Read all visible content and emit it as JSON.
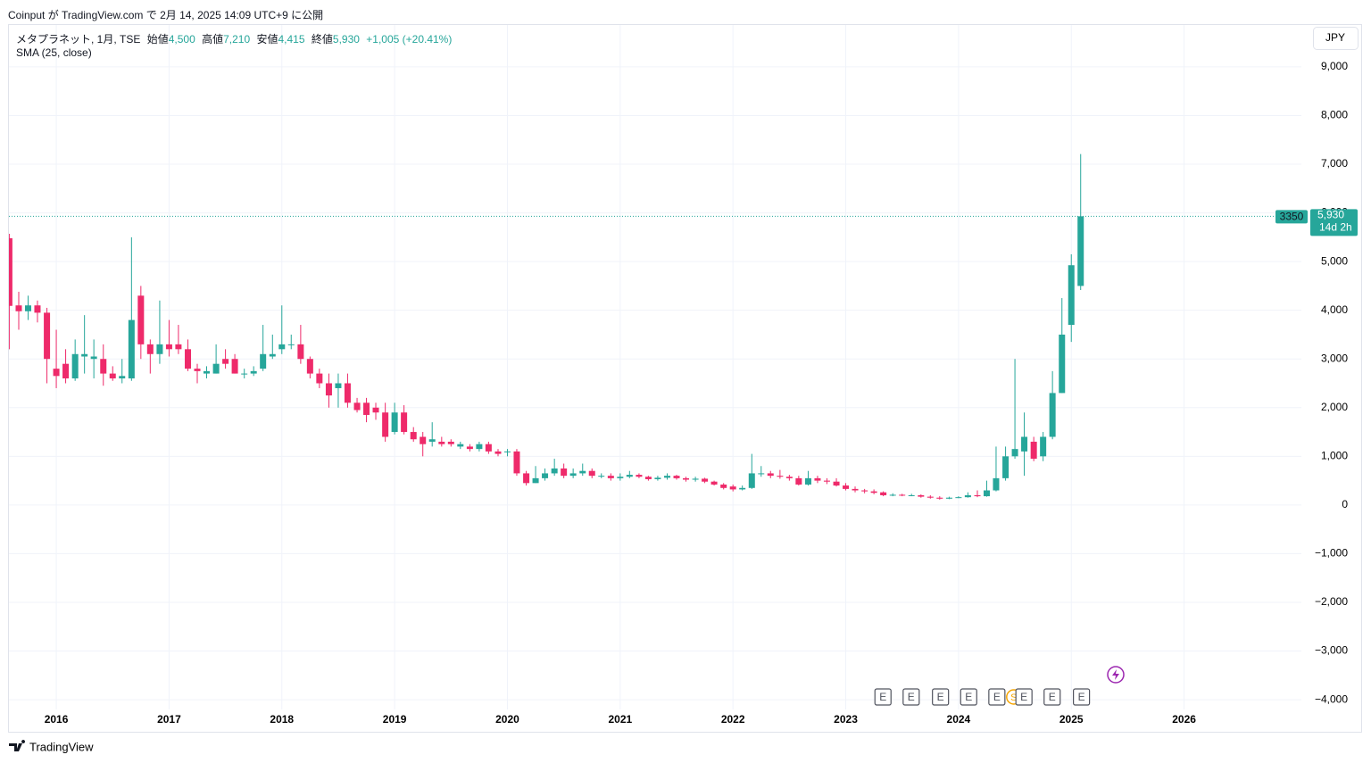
{
  "header": "Coinput が TradingView.com で 2月 14, 2025 14:09 UTC+9 に公開",
  "chart_data": {
    "type": "candlestick",
    "legend": {
      "symbol": "メタプラネット, 1月, TSE",
      "open_label": "始値",
      "open": "4,500",
      "high_label": "高値",
      "high": "7,210",
      "low_label": "安値",
      "low": "4,415",
      "close_label": "終値",
      "close": "5,930",
      "change": "+1,005 (+20.41%)",
      "indicator": "SMA (25, close)"
    },
    "currency": "JPY",
    "up_color": "#26a69a",
    "down_color": "#ee2a6a",
    "xlim": [
      2015.58,
      2027.04
    ],
    "xticks": [
      2016,
      2017,
      2018,
      2019,
      2020,
      2021,
      2022,
      2023,
      2024,
      2025,
      2026
    ],
    "ylim": [
      -4200,
      9860
    ],
    "yticks": [
      {
        "value": -4000,
        "label": "−4,000"
      },
      {
        "value": -3000,
        "label": "−3,000"
      },
      {
        "value": -2000,
        "label": "−2,000"
      },
      {
        "value": -1000,
        "label": "−1,000"
      },
      0,
      {
        "value": 1000,
        "label": "1,000"
      },
      {
        "value": 2000,
        "label": "2,000"
      },
      {
        "value": 3000,
        "label": "3,000"
      },
      {
        "value": 4000,
        "label": "4,000"
      },
      {
        "value": 5000,
        "label": "5,000"
      },
      {
        "value": 6000,
        "label": "6,000"
      },
      {
        "value": 7000,
        "label": "7,000"
      },
      {
        "value": 8000,
        "label": "8,000"
      },
      {
        "value": 9000,
        "label": "9,000"
      }
    ],
    "grid": true,
    "x": [
      2015.583,
      2015.667,
      2015.75,
      2015.833,
      2015.917,
      2016,
      2016.083,
      2016.167,
      2016.25,
      2016.333,
      2016.417,
      2016.5,
      2016.583,
      2016.667,
      2016.75,
      2016.833,
      2016.917,
      2017,
      2017.083,
      2017.167,
      2017.25,
      2017.333,
      2017.417,
      2017.5,
      2017.583,
      2017.667,
      2017.75,
      2017.833,
      2017.917,
      2018,
      2018.083,
      2018.167,
      2018.25,
      2018.333,
      2018.417,
      2018.5,
      2018.583,
      2018.667,
      2018.75,
      2018.833,
      2018.917,
      2019,
      2019.083,
      2019.167,
      2019.25,
      2019.333,
      2019.417,
      2019.5,
      2019.583,
      2019.667,
      2019.75,
      2019.833,
      2019.917,
      2020,
      2020.083,
      2020.167,
      2020.25,
      2020.333,
      2020.417,
      2020.5,
      2020.583,
      2020.667,
      2020.75,
      2020.833,
      2020.917,
      2021,
      2021.083,
      2021.167,
      2021.25,
      2021.333,
      2021.417,
      2021.5,
      2021.583,
      2021.667,
      2021.75,
      2021.833,
      2021.917,
      2022,
      2022.083,
      2022.167,
      2022.25,
      2022.333,
      2022.417,
      2022.5,
      2022.583,
      2022.667,
      2022.75,
      2022.833,
      2022.917,
      2023,
      2023.083,
      2023.167,
      2023.25,
      2023.333,
      2023.417,
      2023.5,
      2023.583,
      2023.667,
      2023.75,
      2023.833,
      2023.917,
      2024,
      2024.083,
      2024.167,
      2024.25,
      2024.333,
      2024.417,
      2024.5,
      2024.583,
      2024.667,
      2024.75,
      2024.833,
      2024.917,
      2025,
      2025.083
    ],
    "open": [
      5480,
      4100,
      3980,
      4100,
      3950,
      2800,
      2900,
      2600,
      3050,
      3000,
      3000,
      2700,
      2600,
      2600,
      4300,
      3300,
      3100,
      3300,
      3300,
      3200,
      2800,
      2700,
      2700,
      3000,
      3000,
      2700,
      2700,
      2800,
      3050,
      3200,
      3300,
      3300,
      3000,
      2700,
      2500,
      2400,
      2500,
      2100,
      2100,
      2000,
      1900,
      1500,
      1900,
      1500,
      1400,
      1300,
      1300,
      1300,
      1200,
      1200,
      1150,
      1250,
      1100,
      1100,
      1100,
      650,
      450,
      550,
      650,
      750,
      600,
      650,
      700,
      600,
      600,
      550,
      580,
      620,
      580,
      530,
      560,
      600,
      550,
      520,
      540,
      480,
      420,
      380,
      320,
      350,
      650,
      650,
      600,
      580,
      550,
      420,
      550,
      500,
      480,
      400,
      330,
      300,
      280,
      260,
      200,
      210,
      200,
      200,
      170,
      150,
      130,
      150,
      160,
      200,
      180,
      300,
      550,
      1000,
      1100,
      1300,
      1000,
      1400,
      2300,
      3700,
      4500
    ],
    "high": [
      5570,
      4380,
      4300,
      4200,
      4050,
      3600,
      3200,
      3400,
      3900,
      3400,
      3300,
      2850,
      3000,
      5500,
      4500,
      3400,
      4200,
      3800,
      3700,
      3400,
      2900,
      2850,
      3300,
      3200,
      3100,
      2800,
      2850,
      3700,
      3500,
      4100,
      3500,
      3700,
      3050,
      2800,
      2700,
      2700,
      2700,
      2200,
      2200,
      2100,
      2100,
      2100,
      2050,
      1600,
      1500,
      1700,
      1400,
      1350,
      1300,
      1250,
      1300,
      1300,
      1150,
      1150,
      1150,
      700,
      800,
      750,
      950,
      850,
      750,
      850,
      750,
      650,
      650,
      650,
      700,
      650,
      600,
      600,
      650,
      620,
      580,
      580,
      560,
      500,
      450,
      420,
      400,
      1050,
      800,
      700,
      720,
      620,
      600,
      700,
      600,
      550,
      550,
      450,
      380,
      330,
      320,
      280,
      240,
      230,
      230,
      220,
      200,
      180,
      170,
      180,
      260,
      300,
      500,
      1200,
      1200,
      3000,
      1900,
      1400,
      1500,
      2750,
      4250,
      5150,
      7210
    ],
    "low": [
      3200,
      3600,
      3800,
      3750,
      2500,
      2400,
      2500,
      2550,
      2700,
      2600,
      2450,
      2550,
      2500,
      2550,
      3000,
      2700,
      2900,
      3050,
      3100,
      2750,
      2500,
      2600,
      2700,
      2800,
      2700,
      2600,
      2650,
      2750,
      3000,
      3100,
      3200,
      2900,
      2600,
      2400,
      2000,
      2000,
      2000,
      1900,
      1700,
      1750,
      1300,
      1450,
      1450,
      1300,
      1000,
      1200,
      1200,
      1200,
      1150,
      1100,
      1100,
      1050,
      1000,
      1000,
      600,
      400,
      450,
      500,
      600,
      550,
      550,
      600,
      550,
      550,
      500,
      500,
      550,
      550,
      500,
      500,
      520,
      520,
      480,
      480,
      450,
      400,
      320,
      280,
      300,
      330,
      580,
      550,
      540,
      500,
      400,
      400,
      450,
      430,
      380,
      300,
      260,
      240,
      220,
      180,
      180,
      180,
      180,
      150,
      130,
      110,
      120,
      140,
      150,
      160,
      170,
      280,
      500,
      950,
      600,
      900,
      900,
      1350,
      2300,
      3350,
      4415
    ],
    "close": [
      4090,
      3980,
      4100,
      3950,
      3000,
      2650,
      2600,
      3100,
      3100,
      3050,
      2700,
      2600,
      2650,
      3800,
      3300,
      3100,
      3300,
      3200,
      3200,
      2800,
      2750,
      2750,
      2900,
      2900,
      2700,
      2700,
      2750,
      3100,
      3100,
      3300,
      3300,
      3000,
      2700,
      2500,
      2250,
      2500,
      2100,
      1950,
      1850,
      1900,
      1400,
      1900,
      1500,
      1350,
      1250,
      1350,
      1250,
      1250,
      1250,
      1150,
      1250,
      1100,
      1050,
      1100,
      650,
      450,
      550,
      650,
      750,
      600,
      650,
      700,
      600,
      600,
      550,
      580,
      620,
      580,
      530,
      560,
      600,
      550,
      520,
      540,
      480,
      420,
      350,
      320,
      350,
      650,
      650,
      600,
      580,
      550,
      420,
      550,
      500,
      480,
      400,
      330,
      300,
      280,
      250,
      200,
      210,
      200,
      200,
      170,
      150,
      130,
      150,
      160,
      200,
      180,
      300,
      550,
      1000,
      1150,
      1400,
      950,
      1400,
      2300,
      3500,
      4925,
      5930
    ],
    "last_price": {
      "value": 5930,
      "label": "5,930",
      "countdown": "14d 2h",
      "tag": "3350"
    },
    "events": [
      {
        "x": 2023.33,
        "label": "E"
      },
      {
        "x": 2023.58,
        "label": "E"
      },
      {
        "x": 2023.84,
        "label": "E"
      },
      {
        "x": 2024.09,
        "label": "E"
      },
      {
        "x": 2024.34,
        "label": "E"
      },
      {
        "x": 2024.49,
        "label": "S"
      },
      {
        "x": 2024.58,
        "label": "E"
      },
      {
        "x": 2024.83,
        "label": "E"
      },
      {
        "x": 2025.09,
        "label": "E"
      }
    ]
  },
  "footer": "TradingView"
}
